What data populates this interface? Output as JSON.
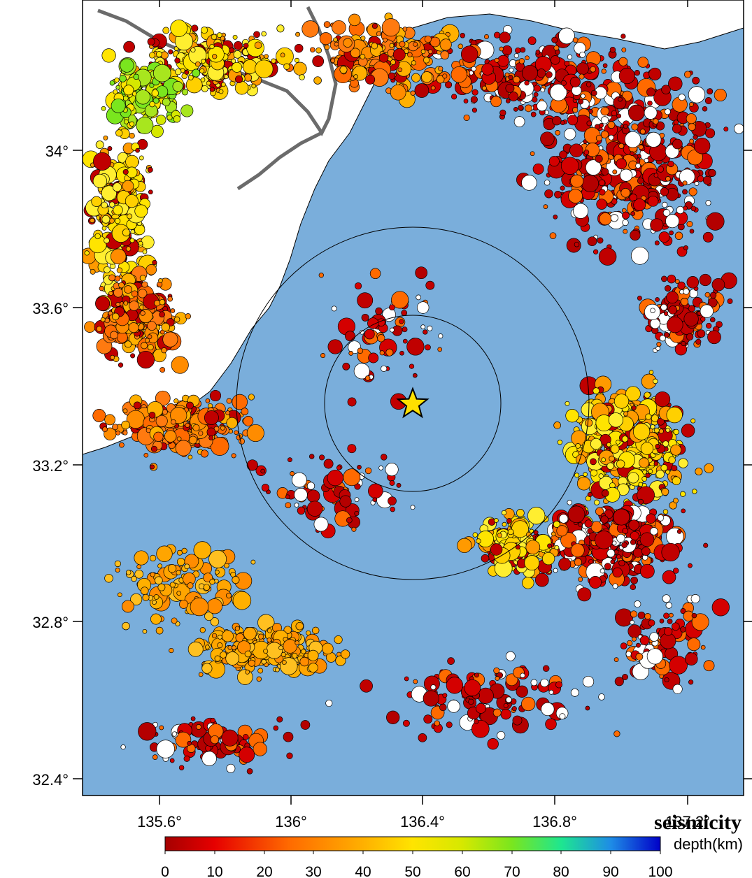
{
  "map": {
    "title": "seismicity",
    "depth_unit_label": "depth(km)",
    "lon_range": [
      135.45,
      137.45
    ],
    "lat_range": [
      32.35,
      34.35
    ],
    "lon_ticks": [
      "135.6°",
      "136°",
      "136.4°",
      "136.8°",
      "137.2°"
    ],
    "lat_ticks": [
      "34°",
      "33.6°",
      "33.2°",
      "32.8°",
      "32.4°"
    ],
    "colorbar_ticks": [
      "0",
      "10",
      "20",
      "30",
      "40",
      "50",
      "60",
      "70",
      "80",
      "90",
      "100"
    ],
    "epicenter": {
      "lon": 136.38,
      "lat": 33.35,
      "symbol": "star-icon"
    },
    "circles_km": [
      25,
      50
    ],
    "colors": {
      "sea": "#7aaedb",
      "land": "#ffffff",
      "coast": "#000000",
      "border": "#6b6b6b",
      "star": "#ffe000",
      "depth_scale": [
        "#a50000",
        "#e60000",
        "#ff4a00",
        "#ff8c00",
        "#ffb000",
        "#ffe400",
        "#c8e600",
        "#6ee61e",
        "#1ee6a0",
        "#1e6ee6",
        "#0000c8"
      ]
    }
  }
}
